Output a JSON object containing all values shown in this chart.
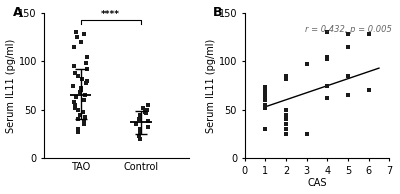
{
  "panel_A": {
    "TAO": [
      130,
      128,
      125,
      120,
      115,
      105,
      98,
      95,
      92,
      88,
      85,
      82,
      80,
      78,
      75,
      72,
      70,
      68,
      65,
      63,
      60,
      58,
      55,
      52,
      50,
      48,
      45,
      42,
      40,
      38,
      35,
      30,
      27
    ],
    "Control": [
      55,
      52,
      50,
      48,
      47,
      45,
      43,
      40,
      38,
      35,
      32,
      30,
      28,
      26,
      23,
      20
    ],
    "TAO_mean": 65,
    "TAO_sd_high": 92,
    "TAO_sd_low": 40,
    "Control_mean": 37,
    "Control_sd_high": 49,
    "Control_sd_low": 25,
    "ylabel": "Serum IL11 (pg/ml)",
    "ylim": [
      0,
      150
    ],
    "yticks": [
      0,
      50,
      100,
      150
    ],
    "significance": "****"
  },
  "panel_B": {
    "x": [
      1,
      1,
      1,
      1,
      1,
      1,
      1,
      1,
      1,
      2,
      2,
      2,
      2,
      2,
      2,
      2,
      2,
      3,
      3,
      4,
      4,
      4,
      4,
      4,
      5,
      5,
      5,
      5,
      6,
      6
    ],
    "y": [
      73,
      70,
      67,
      65,
      63,
      60,
      55,
      52,
      30,
      85,
      82,
      50,
      45,
      40,
      35,
      30,
      25,
      97,
      25,
      130,
      105,
      102,
      75,
      62,
      128,
      115,
      85,
      65,
      128,
      70
    ],
    "r": 0.432,
    "p": 0.005,
    "regression_x0": 1,
    "regression_x1": 6.5,
    "regression_y0": 53,
    "regression_y1": 93,
    "ylabel": "Serum IL11 (pg/ml)",
    "xlabel": "CAS",
    "ylim": [
      0,
      150
    ],
    "yticks": [
      0,
      50,
      100,
      150
    ],
    "xlim": [
      0,
      7
    ],
    "xticks": [
      0,
      1,
      2,
      3,
      4,
      5,
      6,
      7
    ]
  },
  "bg_color": "#ffffff",
  "dot_color": "#1a1a1a",
  "dot_size": 5,
  "font_size": 7
}
